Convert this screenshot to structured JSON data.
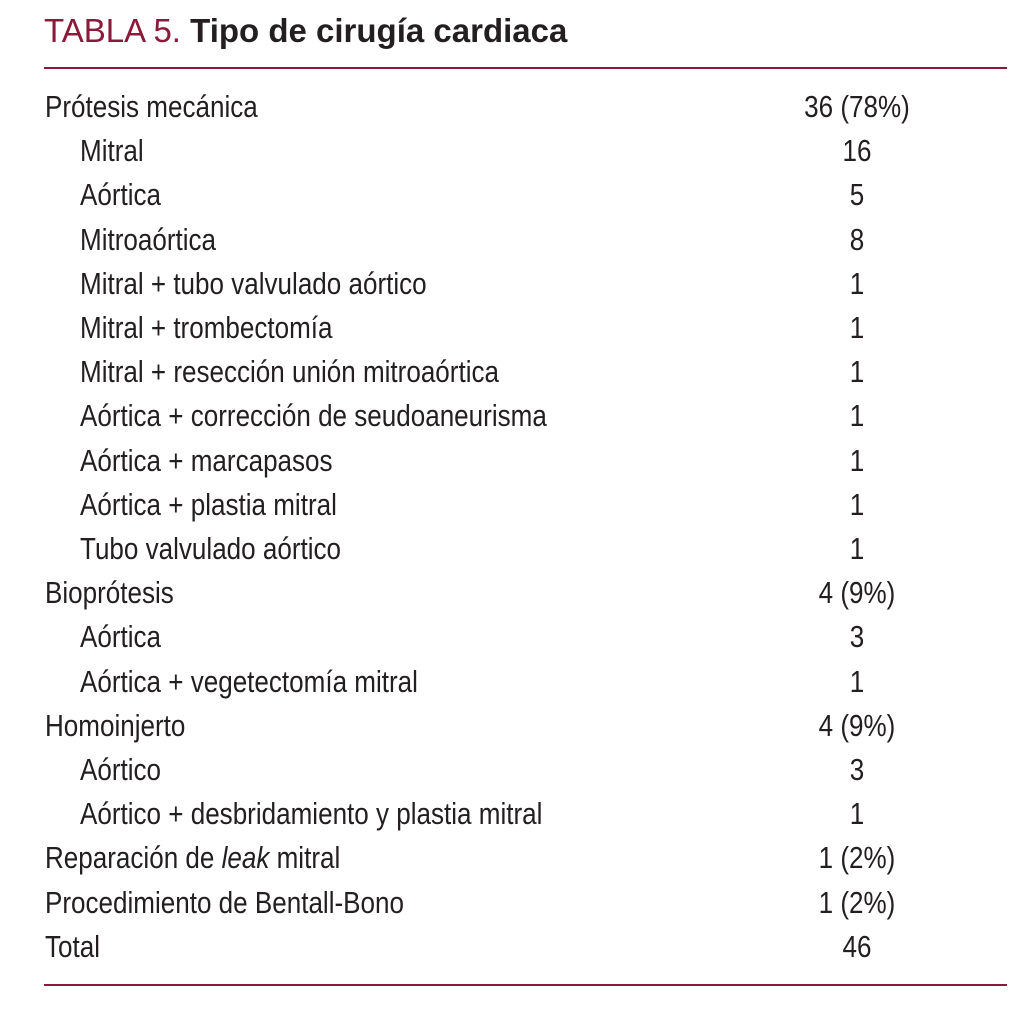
{
  "header": {
    "label": "TABLA 5.",
    "title": "Tipo de cirugía cardiaca"
  },
  "table": {
    "rows": [
      {
        "label": "Prótesis mecánica",
        "value": "36 (78%)",
        "indent": false
      },
      {
        "label": "Mitral",
        "value": "16",
        "indent": true
      },
      {
        "label": "Aórtica",
        "value": "5",
        "indent": true
      },
      {
        "label": "Mitroaórtica",
        "value": "8",
        "indent": true
      },
      {
        "label": "Mitral + tubo valvulado aórtico",
        "value": "1",
        "indent": true
      },
      {
        "label": "Mitral + trombectomía",
        "value": "1",
        "indent": true
      },
      {
        "label": "Mitral + resección unión mitroaórtica",
        "value": "1",
        "indent": true
      },
      {
        "label": "Aórtica + corrección de seudoaneurisma",
        "value": "1",
        "indent": true
      },
      {
        "label": "Aórtica + marcapasos",
        "value": "1",
        "indent": true
      },
      {
        "label": "Aórtica + plastia mitral",
        "value": "1",
        "indent": true
      },
      {
        "label": "Tubo valvulado aórtico",
        "value": "1",
        "indent": true
      },
      {
        "label": "Bioprótesis",
        "value": "4 (9%)",
        "indent": false
      },
      {
        "label": "Aórtica",
        "value": "3",
        "indent": true
      },
      {
        "label": "Aórtica + vegetectomía mitral",
        "value": "1",
        "indent": true
      },
      {
        "label": "Homoinjerto",
        "value": "4 (9%)",
        "indent": false
      },
      {
        "label": "Aórtico",
        "value": "3",
        "indent": true
      },
      {
        "label": "Aórtico + desbridamiento y plastia mitral",
        "value": "1",
        "indent": true
      },
      {
        "label": {
          "before": "Reparación de ",
          "italic": "leak",
          "after": " mitral"
        },
        "value": "1 (2%)",
        "indent": false
      },
      {
        "label": "Procedimiento de Bentall-Bono",
        "value": "1 (2%)",
        "indent": false
      },
      {
        "label": "Total",
        "value": "46",
        "indent": false
      }
    ]
  }
}
